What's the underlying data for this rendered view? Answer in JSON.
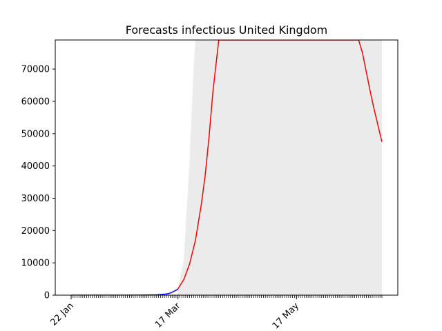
{
  "chart_data": {
    "type": "line",
    "title": "Forecasts infectious United Kingdom",
    "xlabel": "",
    "ylabel": "",
    "x_start": "2020-01-22",
    "x_end": "2020-06-30",
    "ylim": [
      0,
      79000
    ],
    "y_ticks": [
      0,
      10000,
      20000,
      30000,
      40000,
      50000,
      60000,
      70000
    ],
    "x_tick_labels": [
      {
        "label": "22 Jan",
        "date": "2020-01-22"
      },
      {
        "label": "17 Mar",
        "date": "2020-03-17"
      },
      {
        "label": "17 May",
        "date": "2020-05-17"
      }
    ],
    "grid": false,
    "legend": "none",
    "colors": {
      "observed": "#0000ff",
      "forecast": "#ff0000",
      "interval": "#ebebeb"
    },
    "series": [
      {
        "role": "observed",
        "x": [
          "2020-01-22",
          "2020-02-01",
          "2020-02-10",
          "2020-02-20",
          "2020-02-28",
          "2020-03-03",
          "2020-03-06",
          "2020-03-08",
          "2020-03-10",
          "2020-03-12",
          "2020-03-14",
          "2020-03-15",
          "2020-03-16",
          "2020-03-17"
        ],
        "y": [
          0,
          0,
          5,
          10,
          30,
          60,
          120,
          200,
          300,
          450,
          900,
          1200,
          1500,
          1950
        ]
      },
      {
        "role": "forecast",
        "x": [
          "2020-03-17",
          "2020-03-20",
          "2020-03-23",
          "2020-03-26",
          "2020-03-29",
          "2020-03-31",
          "2020-04-02",
          "2020-04-04",
          "2020-04-07",
          "2020-06-18",
          "2020-06-20",
          "2020-06-22",
          "2020-06-24",
          "2020-06-26",
          "2020-06-28",
          "2020-06-30"
        ],
        "y": [
          1950,
          4800,
          9700,
          17000,
          28000,
          37000,
          49000,
          63000,
          79000,
          79000,
          75000,
          69000,
          63000,
          57500,
          52500,
          47500
        ]
      }
    ],
    "interval": {
      "x": [
        "2020-03-17",
        "2020-03-20",
        "2020-03-23",
        "2020-03-25",
        "2020-03-26",
        "2020-06-30"
      ],
      "lower": [
        0,
        0,
        0,
        0,
        0,
        0
      ],
      "upper": [
        1950,
        11000,
        42000,
        70000,
        79000,
        79000
      ]
    }
  }
}
